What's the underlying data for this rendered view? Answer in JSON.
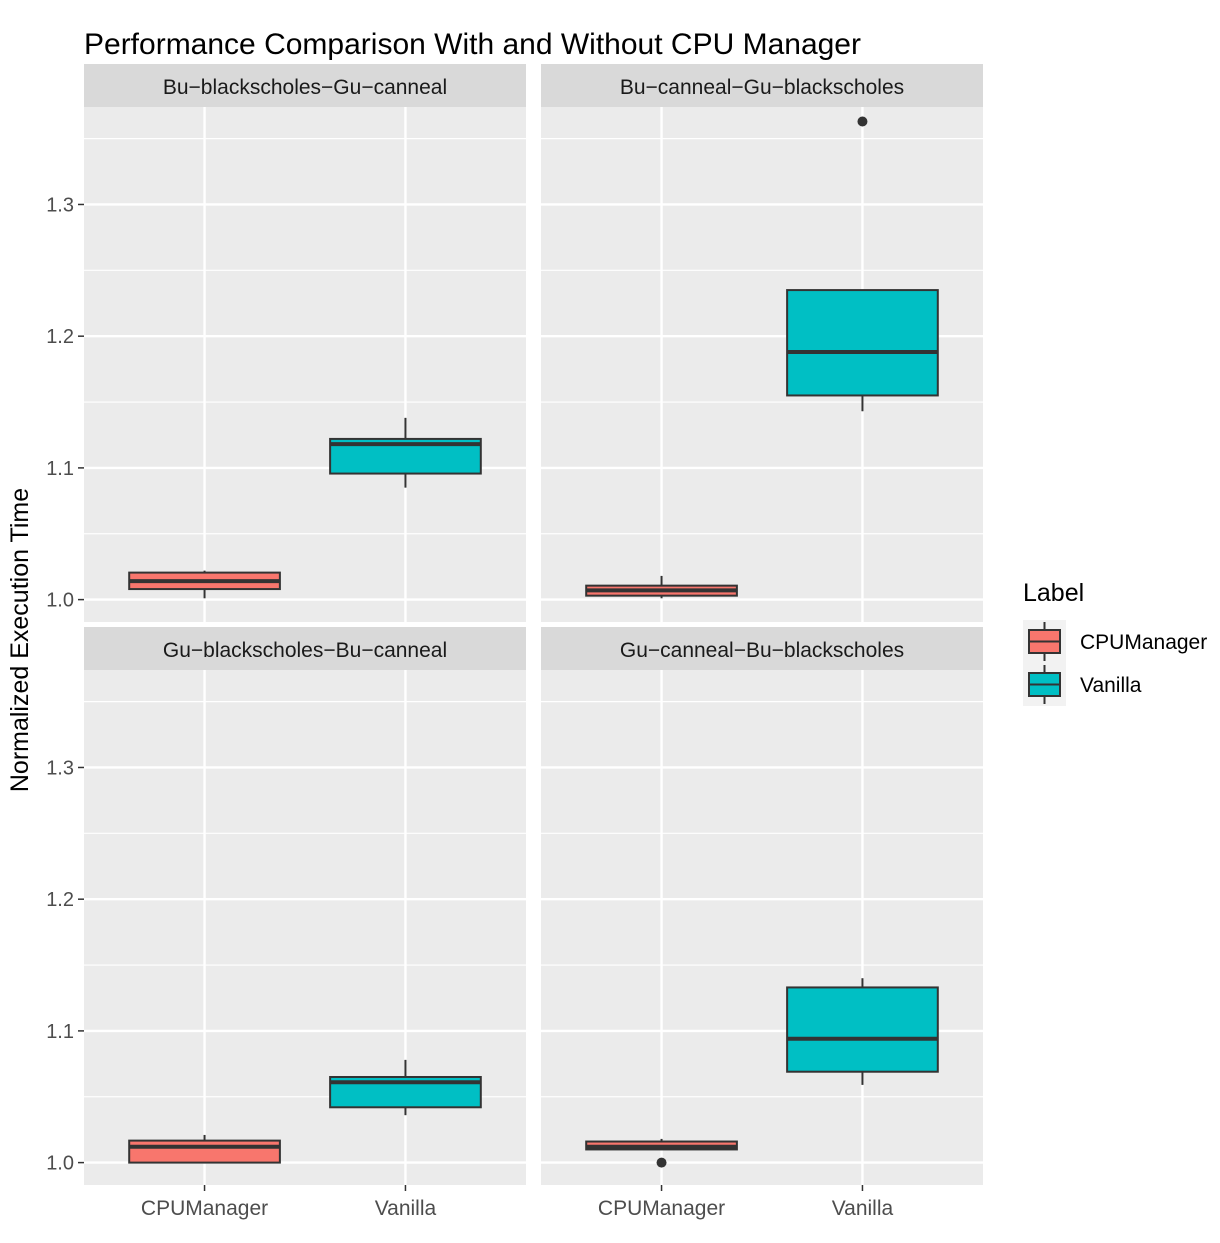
{
  "chart_data": {
    "type": "box",
    "title": "Performance Comparison With and Without CPU Manager",
    "ylabel": "Normalized Execution Time",
    "xlabel": "",
    "categories": [
      "CPUManager",
      "Vanilla"
    ],
    "ylim": [
      0.983,
      1.374
    ],
    "yticks": [
      1.0,
      1.1,
      1.2,
      1.3
    ],
    "ytick_labels": [
      "1.0",
      "1.1",
      "1.2",
      "1.3"
    ],
    "grid": true,
    "legend": {
      "title": "Label",
      "position": "right",
      "entries": [
        "CPUManager",
        "Vanilla"
      ]
    },
    "colors": {
      "CPUManager": "#F8766D",
      "Vanilla": "#00BFC4",
      "panel_bg": "#EBEBEB",
      "strip_bg": "#D9D9D9"
    },
    "panels": [
      {
        "title": "Bu−blackscholes−Gu−canneal",
        "boxes": [
          {
            "label": "CPUManager",
            "low": 1.001,
            "q1": 1.008,
            "median": 1.014,
            "q3": 1.0205,
            "high": 1.022,
            "outliers": []
          },
          {
            "label": "Vanilla",
            "low": 1.085,
            "q1": 1.0957,
            "median": 1.118,
            "q3": 1.122,
            "high": 1.138,
            "outliers": []
          }
        ]
      },
      {
        "title": "Bu−canneal−Gu−blackscholes",
        "boxes": [
          {
            "label": "CPUManager",
            "low": 1.001,
            "q1": 1.003,
            "median": 1.007,
            "q3": 1.0106,
            "high": 1.018,
            "outliers": []
          },
          {
            "label": "Vanilla",
            "low": 1.143,
            "q1": 1.155,
            "median": 1.188,
            "q3": 1.235,
            "high": 1.235,
            "outliers": [
              1.363
            ]
          }
        ]
      },
      {
        "title": "Gu−blackscholes−Bu−canneal",
        "boxes": [
          {
            "label": "CPUManager",
            "low": 1.0,
            "q1": 1.0,
            "median": 1.012,
            "q3": 1.0167,
            "high": 1.021,
            "outliers": []
          },
          {
            "label": "Vanilla",
            "low": 1.036,
            "q1": 1.042,
            "median": 1.061,
            "q3": 1.065,
            "high": 1.078,
            "outliers": []
          }
        ]
      },
      {
        "title": "Gu−canneal−Bu−blackscholes",
        "boxes": [
          {
            "label": "CPUManager",
            "low": 1.01,
            "q1": 1.01,
            "median": 1.012,
            "q3": 1.016,
            "high": 1.018,
            "outliers": [
              1.0
            ]
          },
          {
            "label": "Vanilla",
            "low": 1.059,
            "q1": 1.069,
            "median": 1.094,
            "q3": 1.133,
            "high": 1.14,
            "outliers": []
          }
        ]
      }
    ]
  }
}
